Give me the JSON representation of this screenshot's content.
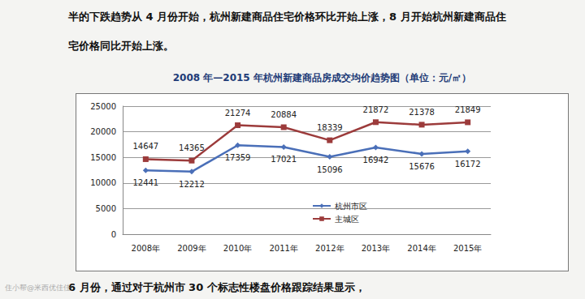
{
  "document": {
    "text_above": [
      "半的下跌趋势从 4 月份开始，杭州新建商品住宅价格环比开始上涨，8 月开始杭州新建商品住",
      "宅价格同比开始上涨。"
    ],
    "text_below": "6 月份，通过对于杭州市 30 个标志性楼盘价格跟踪结果显示，",
    "watermark": "住小帮@米西优佳佳"
  },
  "chart_data": {
    "type": "line",
    "title": "2008 年—2015 年杭州新建商品房成交均价趋势图（单位：元/㎡）",
    "categories": [
      "2008年",
      "2009年",
      "2010年",
      "2011年",
      "2012年",
      "2013年",
      "2014年",
      "2015年"
    ],
    "series": [
      {
        "name": "杭州市区",
        "color": "#4a6fb8",
        "marker": "diamond",
        "values": [
          12441,
          12212,
          17359,
          17021,
          15096,
          16942,
          15676,
          16172
        ]
      },
      {
        "name": "主城区",
        "color": "#9c3b3b",
        "marker": "square",
        "values": [
          14647,
          14365,
          21274,
          20884,
          18339,
          21872,
          21378,
          21849
        ]
      }
    ],
    "ylim": [
      0,
      25000
    ],
    "yticks": [
      0,
      5000,
      10000,
      15000,
      20000,
      25000
    ],
    "grid": true,
    "data_labels": true,
    "legend": "center"
  }
}
